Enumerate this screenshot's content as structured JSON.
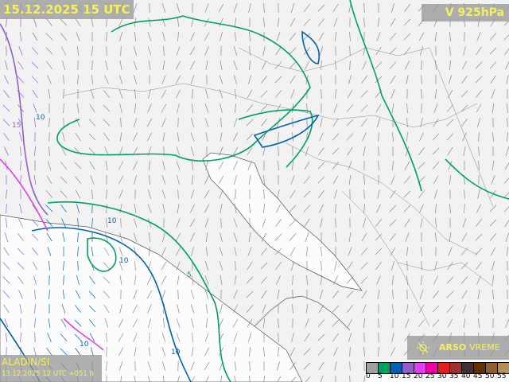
{
  "header": {
    "title": "15.12.2025 15 UTC",
    "level": "V 925hPa"
  },
  "footer": {
    "model": "ALADIN/SI",
    "run": "13.12.2025 12 UTC +051 h"
  },
  "brand": {
    "name_bold": "ARSO",
    "name_regular": "VREME",
    "icon": "sun-crossed-icon"
  },
  "legend": {
    "values": [
      "0",
      "5",
      "10",
      "15",
      "20",
      "25",
      "30",
      "35",
      "40",
      "45",
      "50",
      "55"
    ],
    "colors": [
      "#a0a0a0",
      "#00a060",
      "#0060b0",
      "#9060c8",
      "#e040f0",
      "#f000a0",
      "#e02020",
      "#a03030",
      "#403030",
      "#603000",
      "#906030",
      "#b09060"
    ]
  },
  "contour_labels": [
    "10",
    "10",
    "10",
    "15",
    "5",
    "10",
    "10"
  ],
  "colors": {
    "land": "#f2f2f2",
    "sea": "#ffffff",
    "label_text": "#f6f060",
    "label_bg": "#969696"
  }
}
